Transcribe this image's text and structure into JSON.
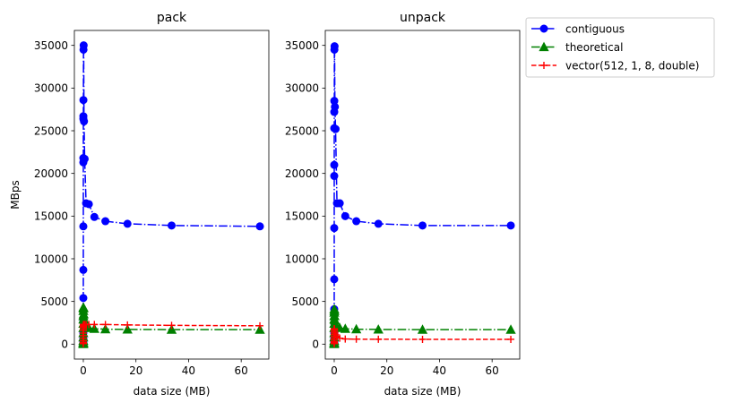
{
  "chart_data": [
    {
      "type": "line",
      "title": "pack",
      "xlabel": "data size (MB)",
      "ylabel": "MBps",
      "xlim": [
        -3.4,
        70.5
      ],
      "ylim": [
        -1750,
        36750
      ],
      "xticks": [
        0,
        20,
        40,
        60
      ],
      "yticks": [
        0,
        5000,
        10000,
        15000,
        20000,
        25000,
        30000,
        35000
      ],
      "series": [
        {
          "name": "contiguous",
          "color": "#0000ff",
          "linestyle": "dashdot",
          "marker": "circle",
          "x": [
            8e-06,
            1.6e-05,
            3.2e-05,
            6.4e-05,
            0.000128,
            0.000256,
            0.000512,
            0.001,
            0.002,
            0.004,
            0.008,
            0.016,
            0.032,
            0.064,
            0.128,
            0.256,
            0.512,
            1.049,
            2.097,
            4.194,
            8.389,
            16.777,
            33.554,
            67.109
          ],
          "y": [
            100,
            250,
            600,
            1300,
            2600,
            5400,
            8700,
            13800,
            21300,
            21800,
            26400,
            26700,
            28600,
            34500,
            35000,
            26100,
            21700,
            16500,
            16400,
            14900,
            14400,
            14100,
            13900,
            13800
          ]
        },
        {
          "name": "theoretical",
          "color": "#008000",
          "linestyle": "dashdot",
          "marker": "triangle",
          "x": [
            8e-06,
            1.6e-05,
            3.2e-05,
            6.4e-05,
            0.000128,
            0.000256,
            0.000512,
            0.001,
            0.002,
            0.004,
            0.008,
            0.016,
            0.032,
            0.064,
            0.128,
            0.256,
            0.512,
            1.049,
            2.097,
            4.194,
            8.389,
            16.777,
            33.554,
            67.109
          ],
          "y": [
            20,
            50,
            100,
            200,
            400,
            800,
            1300,
            1900,
            2400,
            2900,
            3300,
            3900,
            4300,
            4200,
            3500,
            2900,
            2300,
            2000,
            1900,
            1800,
            1750,
            1720,
            1700,
            1700
          ]
        },
        {
          "name": "vector(512, 1, 8, double)",
          "color": "#ff0000",
          "linestyle": "dashed",
          "marker": "plus",
          "x": [
            8e-06,
            1.6e-05,
            3.2e-05,
            6.4e-05,
            0.000128,
            0.000256,
            0.000512,
            0.001,
            0.002,
            0.004,
            0.008,
            0.016,
            0.032,
            0.064,
            0.128,
            0.256,
            0.512,
            1.049,
            2.097,
            4.194,
            8.389,
            16.777,
            33.554,
            67.109
          ],
          "y": [
            50,
            100,
            200,
            400,
            700,
            1000,
            1300,
            1600,
            1800,
            2000,
            2100,
            2200,
            2250,
            2300,
            2300,
            2300,
            2300,
            2300,
            2300,
            2300,
            2300,
            2250,
            2200,
            2150
          ]
        }
      ]
    },
    {
      "type": "line",
      "title": "unpack",
      "xlabel": "data size (MB)",
      "ylabel": "",
      "xlim": [
        -3.4,
        70.5
      ],
      "ylim": [
        -1750,
        36750
      ],
      "xticks": [
        0,
        20,
        40,
        60
      ],
      "yticks": [
        0,
        5000,
        10000,
        15000,
        20000,
        25000,
        30000,
        35000
      ],
      "series": [
        {
          "name": "contiguous",
          "color": "#0000ff",
          "linestyle": "dashdot",
          "marker": "circle",
          "x": [
            8e-06,
            1.6e-05,
            3.2e-05,
            6.4e-05,
            0.000128,
            0.000256,
            0.000512,
            0.001,
            0.002,
            0.004,
            0.008,
            0.016,
            0.032,
            0.064,
            0.128,
            0.256,
            0.512,
            1.049,
            2.097,
            4.194,
            8.389,
            16.777,
            33.554,
            67.109
          ],
          "y": [
            100,
            250,
            600,
            1300,
            2500,
            4100,
            7600,
            13600,
            19700,
            21000,
            25300,
            27200,
            28500,
            34500,
            34900,
            27800,
            25200,
            16500,
            16500,
            15000,
            14400,
            14100,
            13900,
            13900
          ]
        },
        {
          "name": "theoretical",
          "color": "#008000",
          "linestyle": "dashdot",
          "marker": "triangle",
          "x": [
            8e-06,
            1.6e-05,
            3.2e-05,
            6.4e-05,
            0.000128,
            0.000256,
            0.000512,
            0.001,
            0.002,
            0.004,
            0.008,
            0.016,
            0.032,
            0.064,
            0.128,
            0.256,
            0.512,
            1.049,
            2.097,
            4.194,
            8.389,
            16.777,
            33.554,
            67.109
          ],
          "y": [
            20,
            50,
            100,
            200,
            400,
            800,
            1300,
            1900,
            2400,
            2900,
            3300,
            3700,
            4100,
            3900,
            3300,
            2800,
            2300,
            2000,
            1900,
            1800,
            1750,
            1720,
            1700,
            1700
          ]
        },
        {
          "name": "vector(512, 1, 8, double)",
          "color": "#ff0000",
          "linestyle": "dashed",
          "marker": "plus",
          "x": [
            8e-06,
            1.6e-05,
            3.2e-05,
            6.4e-05,
            0.000128,
            0.000256,
            0.000512,
            0.001,
            0.002,
            0.004,
            0.008,
            0.016,
            0.032,
            0.064,
            0.128,
            0.256,
            0.512,
            1.049,
            2.097,
            4.194,
            8.389,
            16.777,
            33.554,
            67.109
          ],
          "y": [
            50,
            100,
            200,
            300,
            500,
            700,
            900,
            1100,
            1300,
            1500,
            1700,
            1800,
            1800,
            1700,
            1500,
            1300,
            1100,
            900,
            700,
            600,
            580,
            570,
            560,
            560
          ]
        }
      ]
    }
  ],
  "legend": {
    "placement": "outside-right",
    "entries": [
      "contiguous",
      "theoretical",
      "vector(512, 1, 8, double)"
    ]
  }
}
